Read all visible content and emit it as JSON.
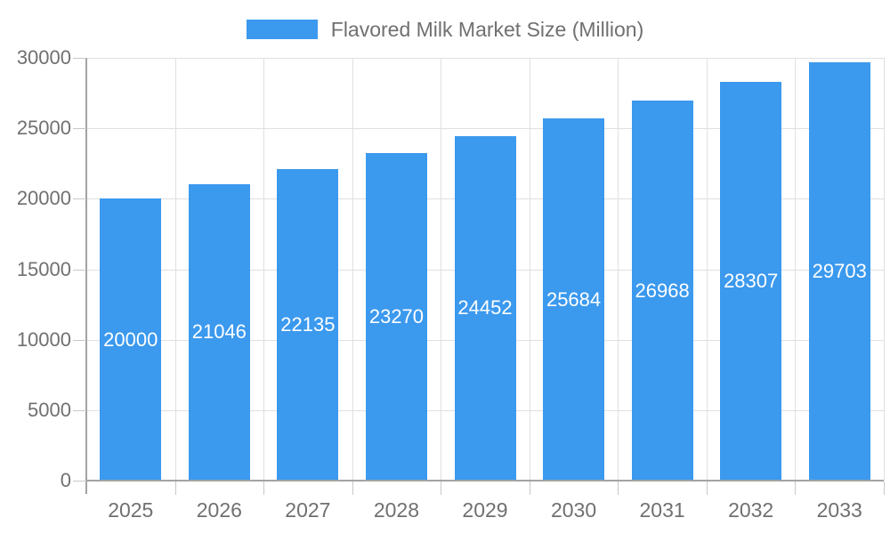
{
  "colors": {
    "bar": "#3B99EE",
    "bar_label": "#FFFFFF",
    "grid": "#E0E0E0",
    "axis": "#A3A3A3",
    "tick": "#C8C8C8",
    "text": "#707070",
    "background": "#FFFFFF"
  },
  "legend": {
    "label": "Flavored Milk Market Size (Million)",
    "position": "top"
  },
  "chart_data": {
    "type": "bar",
    "title": "Flavored Milk Market Size (Million)",
    "categories": [
      "2025",
      "2026",
      "2027",
      "2028",
      "2029",
      "2030",
      "2031",
      "2032",
      "2033"
    ],
    "values": [
      20000,
      21046,
      22135,
      23270,
      24452,
      25684,
      26968,
      28307,
      29703
    ],
    "series": [
      {
        "name": "Flavored Milk Market Size (Million)",
        "values": [
          20000,
          21046,
          22135,
          23270,
          24452,
          25684,
          26968,
          28307,
          29703
        ]
      }
    ],
    "xlabel": "",
    "ylabel": "",
    "ylim": [
      0,
      30000
    ],
    "yticks": [
      0,
      5000,
      10000,
      15000,
      20000,
      25000,
      30000
    ],
    "grid": true,
    "legend_position": "top",
    "bar_value_labels": true
  }
}
